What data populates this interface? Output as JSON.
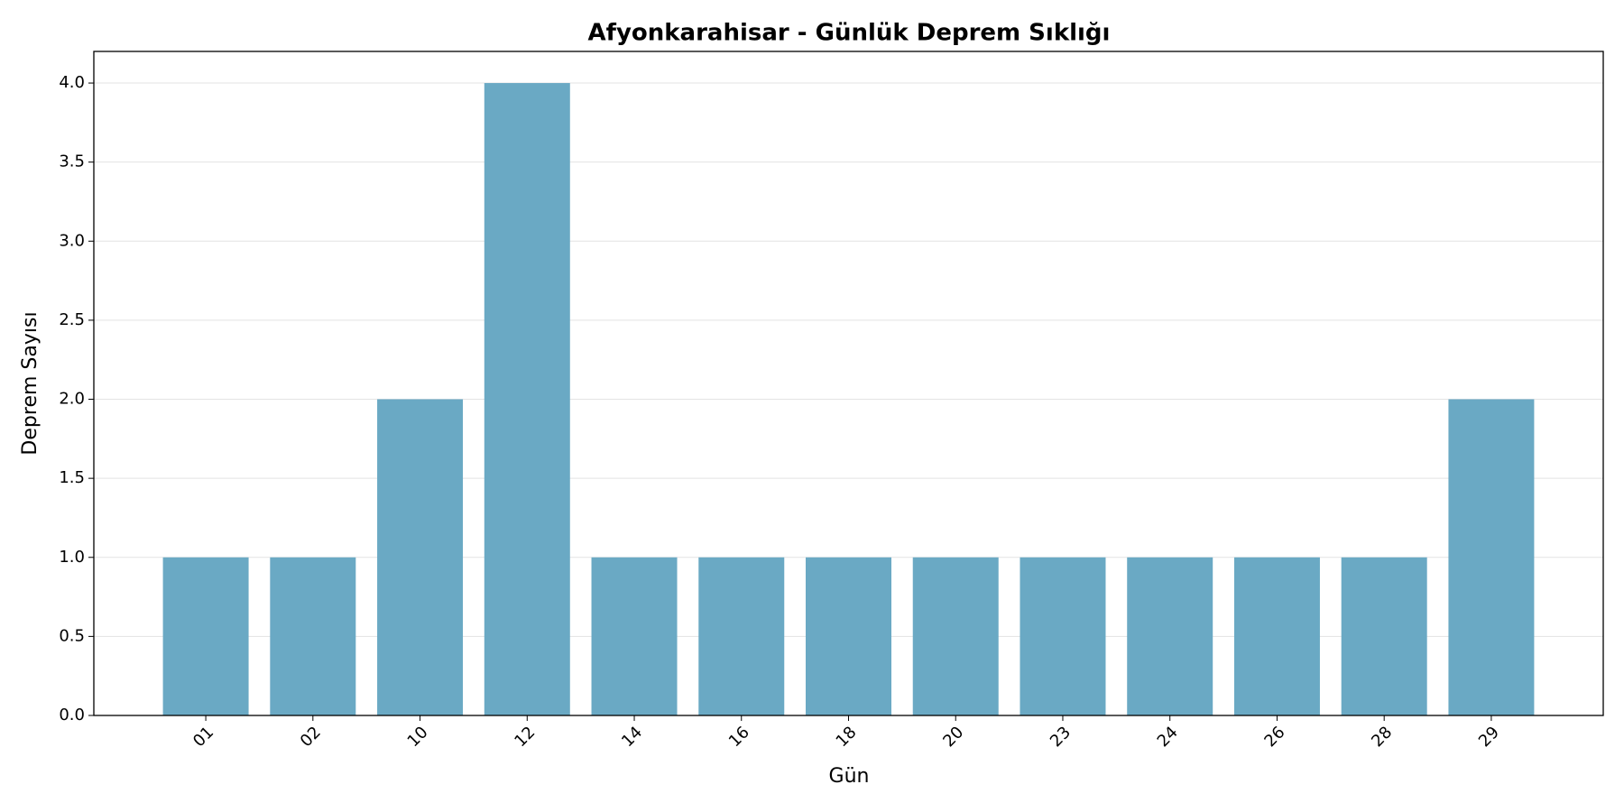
{
  "chart_data": {
    "type": "bar",
    "title": "Afyonkarahisar - Günlük Deprem Sıklığı",
    "x_label": "Gün",
    "y_label": "Deprem Sayısı",
    "categories": [
      "01",
      "02",
      "10",
      "12",
      "14",
      "16",
      "18",
      "20",
      "23",
      "24",
      "26",
      "28",
      "29"
    ],
    "values": [
      1,
      1,
      2,
      4,
      1,
      1,
      1,
      1,
      1,
      1,
      1,
      1,
      2
    ],
    "color": "#6aa9c4",
    "ylim": [
      0,
      4.2
    ],
    "yticks": [
      {
        "value": 0,
        "label": "0.0"
      },
      {
        "value": 0.5,
        "label": "0.5"
      },
      {
        "value": 1,
        "label": "1.0"
      },
      {
        "value": 1.5,
        "label": "1.5"
      },
      {
        "value": 2,
        "label": "2.0"
      },
      {
        "value": 2.5,
        "label": "2.5"
      },
      {
        "value": 3,
        "label": "3.0"
      },
      {
        "value": 3.5,
        "label": "3.5"
      },
      {
        "value": 4,
        "label": "4.0"
      }
    ],
    "grid": true
  }
}
